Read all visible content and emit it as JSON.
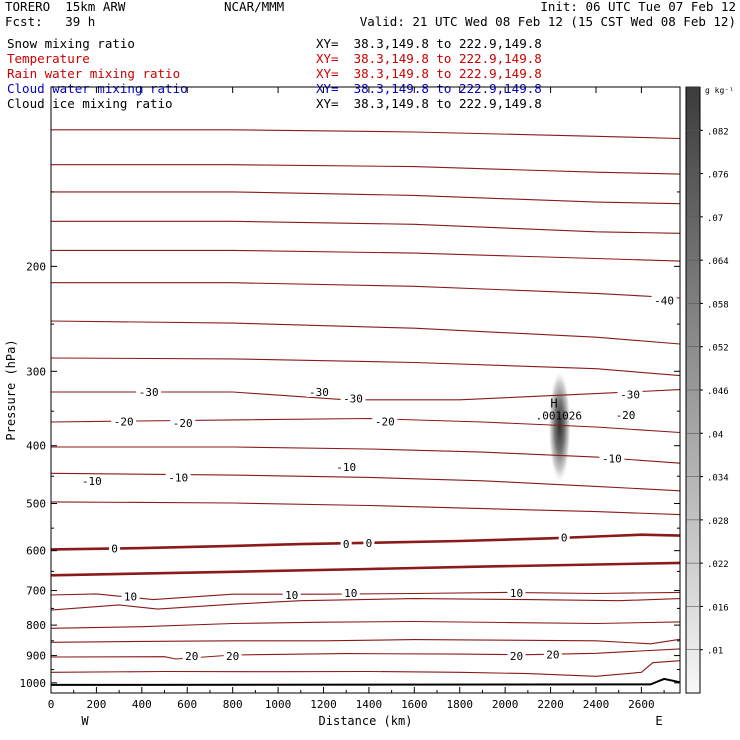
{
  "header": {
    "model": "TORERO  15km ARW",
    "center": "NCAR/MMM",
    "init": "Init: 06 UTC Tue 07 Feb 12",
    "fcst_label": "Fcst:",
    "fcst_value": "39 h",
    "valid": "Valid: 21 UTC Wed 08 Feb 12 (15 CST Wed 08 Feb 12)"
  },
  "fields": [
    {
      "name": "Snow mixing ratio",
      "xy": "XY=  38.3,149.8 to 222.9,149.8",
      "color": "#000000"
    },
    {
      "name": "Temperature",
      "xy": "XY=  38.3,149.8 to 222.9,149.8",
      "color": "#cc0000"
    },
    {
      "name": "Rain water mixing ratio",
      "xy": "XY=  38.3,149.8 to 222.9,149.8",
      "color": "#cc0000"
    },
    {
      "name": "Cloud water mixing ratio",
      "xy": "XY=  38.3,149.8 to 222.9,149.8",
      "color": "#0000cc"
    },
    {
      "name": "Cloud ice mixing ratio",
      "xy": "XY=  38.3,149.8 to 222.9,149.8",
      "color": "#000000"
    }
  ],
  "chart_data": {
    "type": "cross-section contour",
    "xlabel": "Distance (km)",
    "ylabel": "Pressure (hPa)",
    "x_ticks": [
      0,
      200,
      400,
      600,
      800,
      1000,
      1200,
      1400,
      1600,
      1800,
      2000,
      2200,
      2400,
      2600
    ],
    "xlim": [
      0,
      2770
    ],
    "y_ticks": [
      200,
      300,
      400,
      500,
      600,
      700,
      800,
      900,
      1000
    ],
    "ylim": [
      1040,
      100
    ],
    "left_end_label": "W",
    "right_end_label": "E",
    "contour_color": "#8b1a1a",
    "temperature_contours": [
      {
        "level": -50,
        "points": [
          [
            0,
            118
          ],
          [
            800,
            118
          ],
          [
            1600,
            119
          ],
          [
            2400,
            121
          ],
          [
            2770,
            122
          ]
        ]
      },
      {
        "level": -50,
        "points": [
          [
            0,
            135
          ],
          [
            800,
            135
          ],
          [
            1600,
            136
          ],
          [
            2400,
            139
          ],
          [
            2770,
            140
          ]
        ]
      },
      {
        "level": -50,
        "points": [
          [
            0,
            150
          ],
          [
            800,
            150
          ],
          [
            1600,
            152
          ],
          [
            2400,
            156
          ],
          [
            2770,
            157
          ]
        ]
      },
      {
        "level": -50,
        "points": [
          [
            0,
            168
          ],
          [
            800,
            168
          ],
          [
            1600,
            170
          ],
          [
            2400,
            175
          ],
          [
            2770,
            176
          ]
        ]
      },
      {
        "level": -50,
        "points": [
          [
            0,
            188
          ],
          [
            800,
            188
          ],
          [
            1600,
            190
          ],
          [
            2400,
            194
          ],
          [
            2770,
            196
          ]
        ]
      },
      {
        "level": -40,
        "points": [
          [
            0,
            213
          ],
          [
            800,
            213
          ],
          [
            1600,
            216
          ],
          [
            2400,
            222
          ],
          [
            2770,
            226
          ]
        ]
      },
      {
        "level": -30,
        "points": [
          [
            0,
            247
          ],
          [
            800,
            249
          ],
          [
            1600,
            254
          ],
          [
            2400,
            263
          ],
          [
            2770,
            270
          ]
        ]
      },
      {
        "level": -30,
        "points": [
          [
            0,
            285
          ],
          [
            800,
            286
          ],
          [
            1600,
            290
          ],
          [
            2400,
            297
          ],
          [
            2770,
            305
          ]
        ]
      },
      {
        "level": -30,
        "points": [
          [
            0,
            325
          ],
          [
            800,
            325
          ],
          [
            1300,
            335
          ],
          [
            1800,
            335
          ],
          [
            2400,
            327
          ],
          [
            2770,
            322
          ]
        ]
      },
      {
        "level": -20,
        "points": [
          [
            0,
            365
          ],
          [
            800,
            362
          ],
          [
            1400,
            360
          ],
          [
            1900,
            365
          ],
          [
            2400,
            372
          ],
          [
            2770,
            380
          ]
        ]
      },
      {
        "level": -20,
        "points": [
          [
            0,
            402
          ],
          [
            800,
            402
          ],
          [
            1400,
            405
          ],
          [
            1900,
            410
          ],
          [
            2400,
            418
          ],
          [
            2770,
            428
          ]
        ]
      },
      {
        "level": -10,
        "points": [
          [
            0,
            445
          ],
          [
            800,
            448
          ],
          [
            1400,
            452
          ],
          [
            1900,
            458
          ],
          [
            2400,
            468
          ],
          [
            2770,
            476
          ]
        ]
      },
      {
        "level": -10,
        "points": [
          [
            0,
            497
          ],
          [
            800,
            499
          ],
          [
            1400,
            504
          ],
          [
            1900,
            510
          ],
          [
            2400,
            516
          ],
          [
            2770,
            522
          ]
        ]
      },
      {
        "level": 0,
        "points": [
          [
            0,
            597
          ],
          [
            400,
            594
          ],
          [
            800,
            589
          ],
          [
            1100,
            585
          ],
          [
            1400,
            582
          ],
          [
            1800,
            578
          ],
          [
            2200,
            572
          ],
          [
            2400,
            568
          ],
          [
            2600,
            564
          ],
          [
            2770,
            566
          ]
        ]
      },
      {
        "level": 0,
        "points": [
          [
            0,
            660
          ],
          [
            800,
            651
          ],
          [
            1400,
            644
          ],
          [
            1900,
            638
          ],
          [
            2400,
            633
          ],
          [
            2770,
            629
          ]
        ]
      },
      {
        "level": 10,
        "points": [
          [
            0,
            712
          ],
          [
            200,
            709
          ],
          [
            450,
            725
          ],
          [
            800,
            710
          ],
          [
            1200,
            710
          ],
          [
            1600,
            708
          ],
          [
            2000,
            705
          ],
          [
            2400,
            708
          ],
          [
            2770,
            705
          ]
        ]
      },
      {
        "level": 10,
        "points": [
          [
            0,
            755
          ],
          [
            300,
            740
          ],
          [
            470,
            752
          ],
          [
            800,
            738
          ],
          [
            1100,
            728
          ],
          [
            1600,
            722
          ],
          [
            2100,
            725
          ],
          [
            2500,
            728
          ],
          [
            2770,
            722
          ]
        ]
      },
      {
        "level": 10,
        "points": [
          [
            0,
            810
          ],
          [
            400,
            805
          ],
          [
            800,
            795
          ],
          [
            1200,
            791
          ],
          [
            1600,
            789
          ],
          [
            2000,
            792
          ],
          [
            2400,
            795
          ],
          [
            2770,
            790
          ]
        ]
      },
      {
        "level": 20,
        "points": [
          [
            0,
            855
          ],
          [
            400,
            852
          ],
          [
            800,
            850
          ],
          [
            1200,
            850
          ],
          [
            1600,
            846
          ],
          [
            2000,
            848
          ],
          [
            2400,
            850
          ],
          [
            2640,
            860
          ],
          [
            2770,
            845
          ]
        ]
      },
      {
        "level": 20,
        "points": [
          [
            0,
            905
          ],
          [
            500,
            904
          ],
          [
            550,
            912
          ],
          [
            800,
            898
          ],
          [
            1300,
            893
          ],
          [
            1800,
            895
          ],
          [
            2100,
            897
          ],
          [
            2400,
            892
          ],
          [
            2770,
            877
          ]
        ]
      },
      {
        "level": 20,
        "points": [
          [
            0,
            960
          ],
          [
            500,
            957
          ],
          [
            1000,
            958
          ],
          [
            1400,
            957
          ],
          [
            1800,
            960
          ],
          [
            2100,
            965
          ],
          [
            2400,
            975
          ],
          [
            2600,
            960
          ],
          [
            2650,
            925
          ],
          [
            2770,
            918
          ]
        ]
      }
    ],
    "contour_labels": [
      {
        "text": "-40",
        "x": 2700,
        "p": 228
      },
      {
        "text": "-30",
        "x": 430,
        "p": 325
      },
      {
        "text": "-30",
        "x": 1180,
        "p": 325
      },
      {
        "text": "-30",
        "x": 1330,
        "p": 333
      },
      {
        "text": "-30",
        "x": 2550,
        "p": 328
      },
      {
        "text": "-20",
        "x": 320,
        "p": 364
      },
      {
        "text": "-20",
        "x": 580,
        "p": 366
      },
      {
        "text": "-20",
        "x": 1470,
        "p": 364
      },
      {
        "text": "-20",
        "x": 2530,
        "p": 355
      },
      {
        "text": "-10",
        "x": 180,
        "p": 458
      },
      {
        "text": "-10",
        "x": 560,
        "p": 452
      },
      {
        "text": "-10",
        "x": 1300,
        "p": 434
      },
      {
        "text": "-10",
        "x": 2470,
        "p": 420
      },
      {
        "text": "0",
        "x": 280,
        "p": 595
      },
      {
        "text": "0",
        "x": 1300,
        "p": 585
      },
      {
        "text": "0",
        "x": 1400,
        "p": 583
      },
      {
        "text": "0",
        "x": 2260,
        "p": 570
      },
      {
        "text": "10",
        "x": 350,
        "p": 716
      },
      {
        "text": "10",
        "x": 1060,
        "p": 712
      },
      {
        "text": "10",
        "x": 1320,
        "p": 707
      },
      {
        "text": "10",
        "x": 2050,
        "p": 706
      },
      {
        "text": "20",
        "x": 620,
        "p": 901
      },
      {
        "text": "20",
        "x": 800,
        "p": 901
      },
      {
        "text": "20",
        "x": 2050,
        "p": 902
      },
      {
        "text": "20",
        "x": 2210,
        "p": 896
      }
    ],
    "extremum": {
      "marker": "H",
      "value": ".001026",
      "x": 2240,
      "p": 340
    },
    "snow_blob": {
      "x": 2240,
      "p_top": 300,
      "p_bottom": 460,
      "p_center": 380,
      "x_halfwidth": 35
    },
    "terrain": {
      "points": [
        [
          0,
          1008
        ],
        [
          2640,
          1006
        ],
        [
          2700,
          985
        ],
        [
          2770,
          998
        ]
      ]
    },
    "colorbar": {
      "unit": "g kg⁻¹",
      "labels": [
        ".01",
        ".016",
        ".022",
        ".028",
        ".034",
        ".04",
        ".046",
        ".052",
        ".058",
        ".064",
        ".07",
        ".076",
        ".082"
      ],
      "fill_light": "#f7f7f7",
      "fill_dark": "#3c3c3c"
    }
  }
}
